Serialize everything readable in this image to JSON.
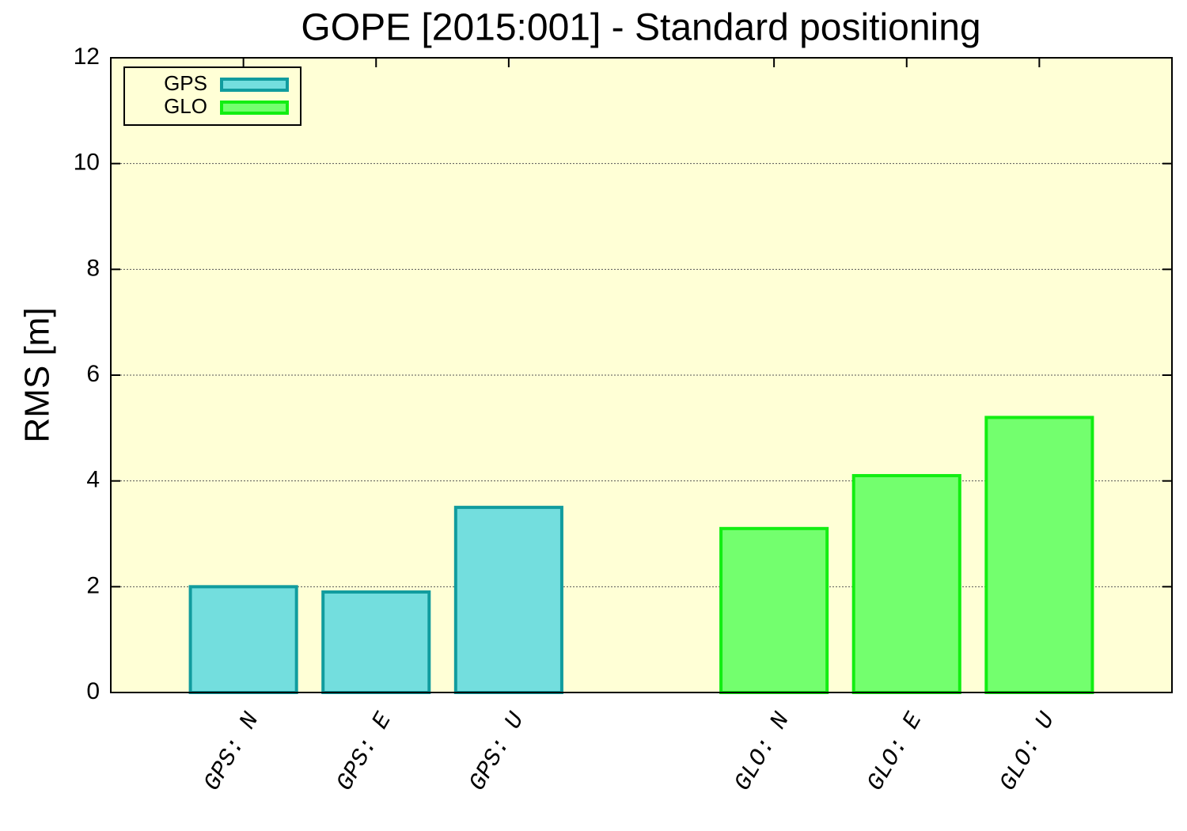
{
  "chart_data": {
    "type": "bar",
    "title": "GOPE [2015:001] - Standard positioning",
    "ylabel": "RMS [m]",
    "categories": [
      "GPS: N",
      "GPS: E",
      "GPS: U",
      null,
      "GLO: N",
      "GLO: E",
      "GLO: U"
    ],
    "series": [
      {
        "name": "GPS",
        "color": "#73dede",
        "edge": "#119c9e",
        "values": [
          2.0,
          1.9,
          3.5,
          null,
          null,
          null,
          null
        ]
      },
      {
        "name": "GLO",
        "color": "#73ff6e",
        "edge": "#12ee12",
        "values": [
          null,
          null,
          null,
          null,
          3.1,
          4.1,
          5.2
        ]
      }
    ],
    "ylim": [
      0,
      12
    ],
    "yticks": [
      0,
      2,
      4,
      6,
      8,
      10,
      12
    ],
    "grid": true,
    "legend": "upper left",
    "background": "#ffffd6"
  }
}
